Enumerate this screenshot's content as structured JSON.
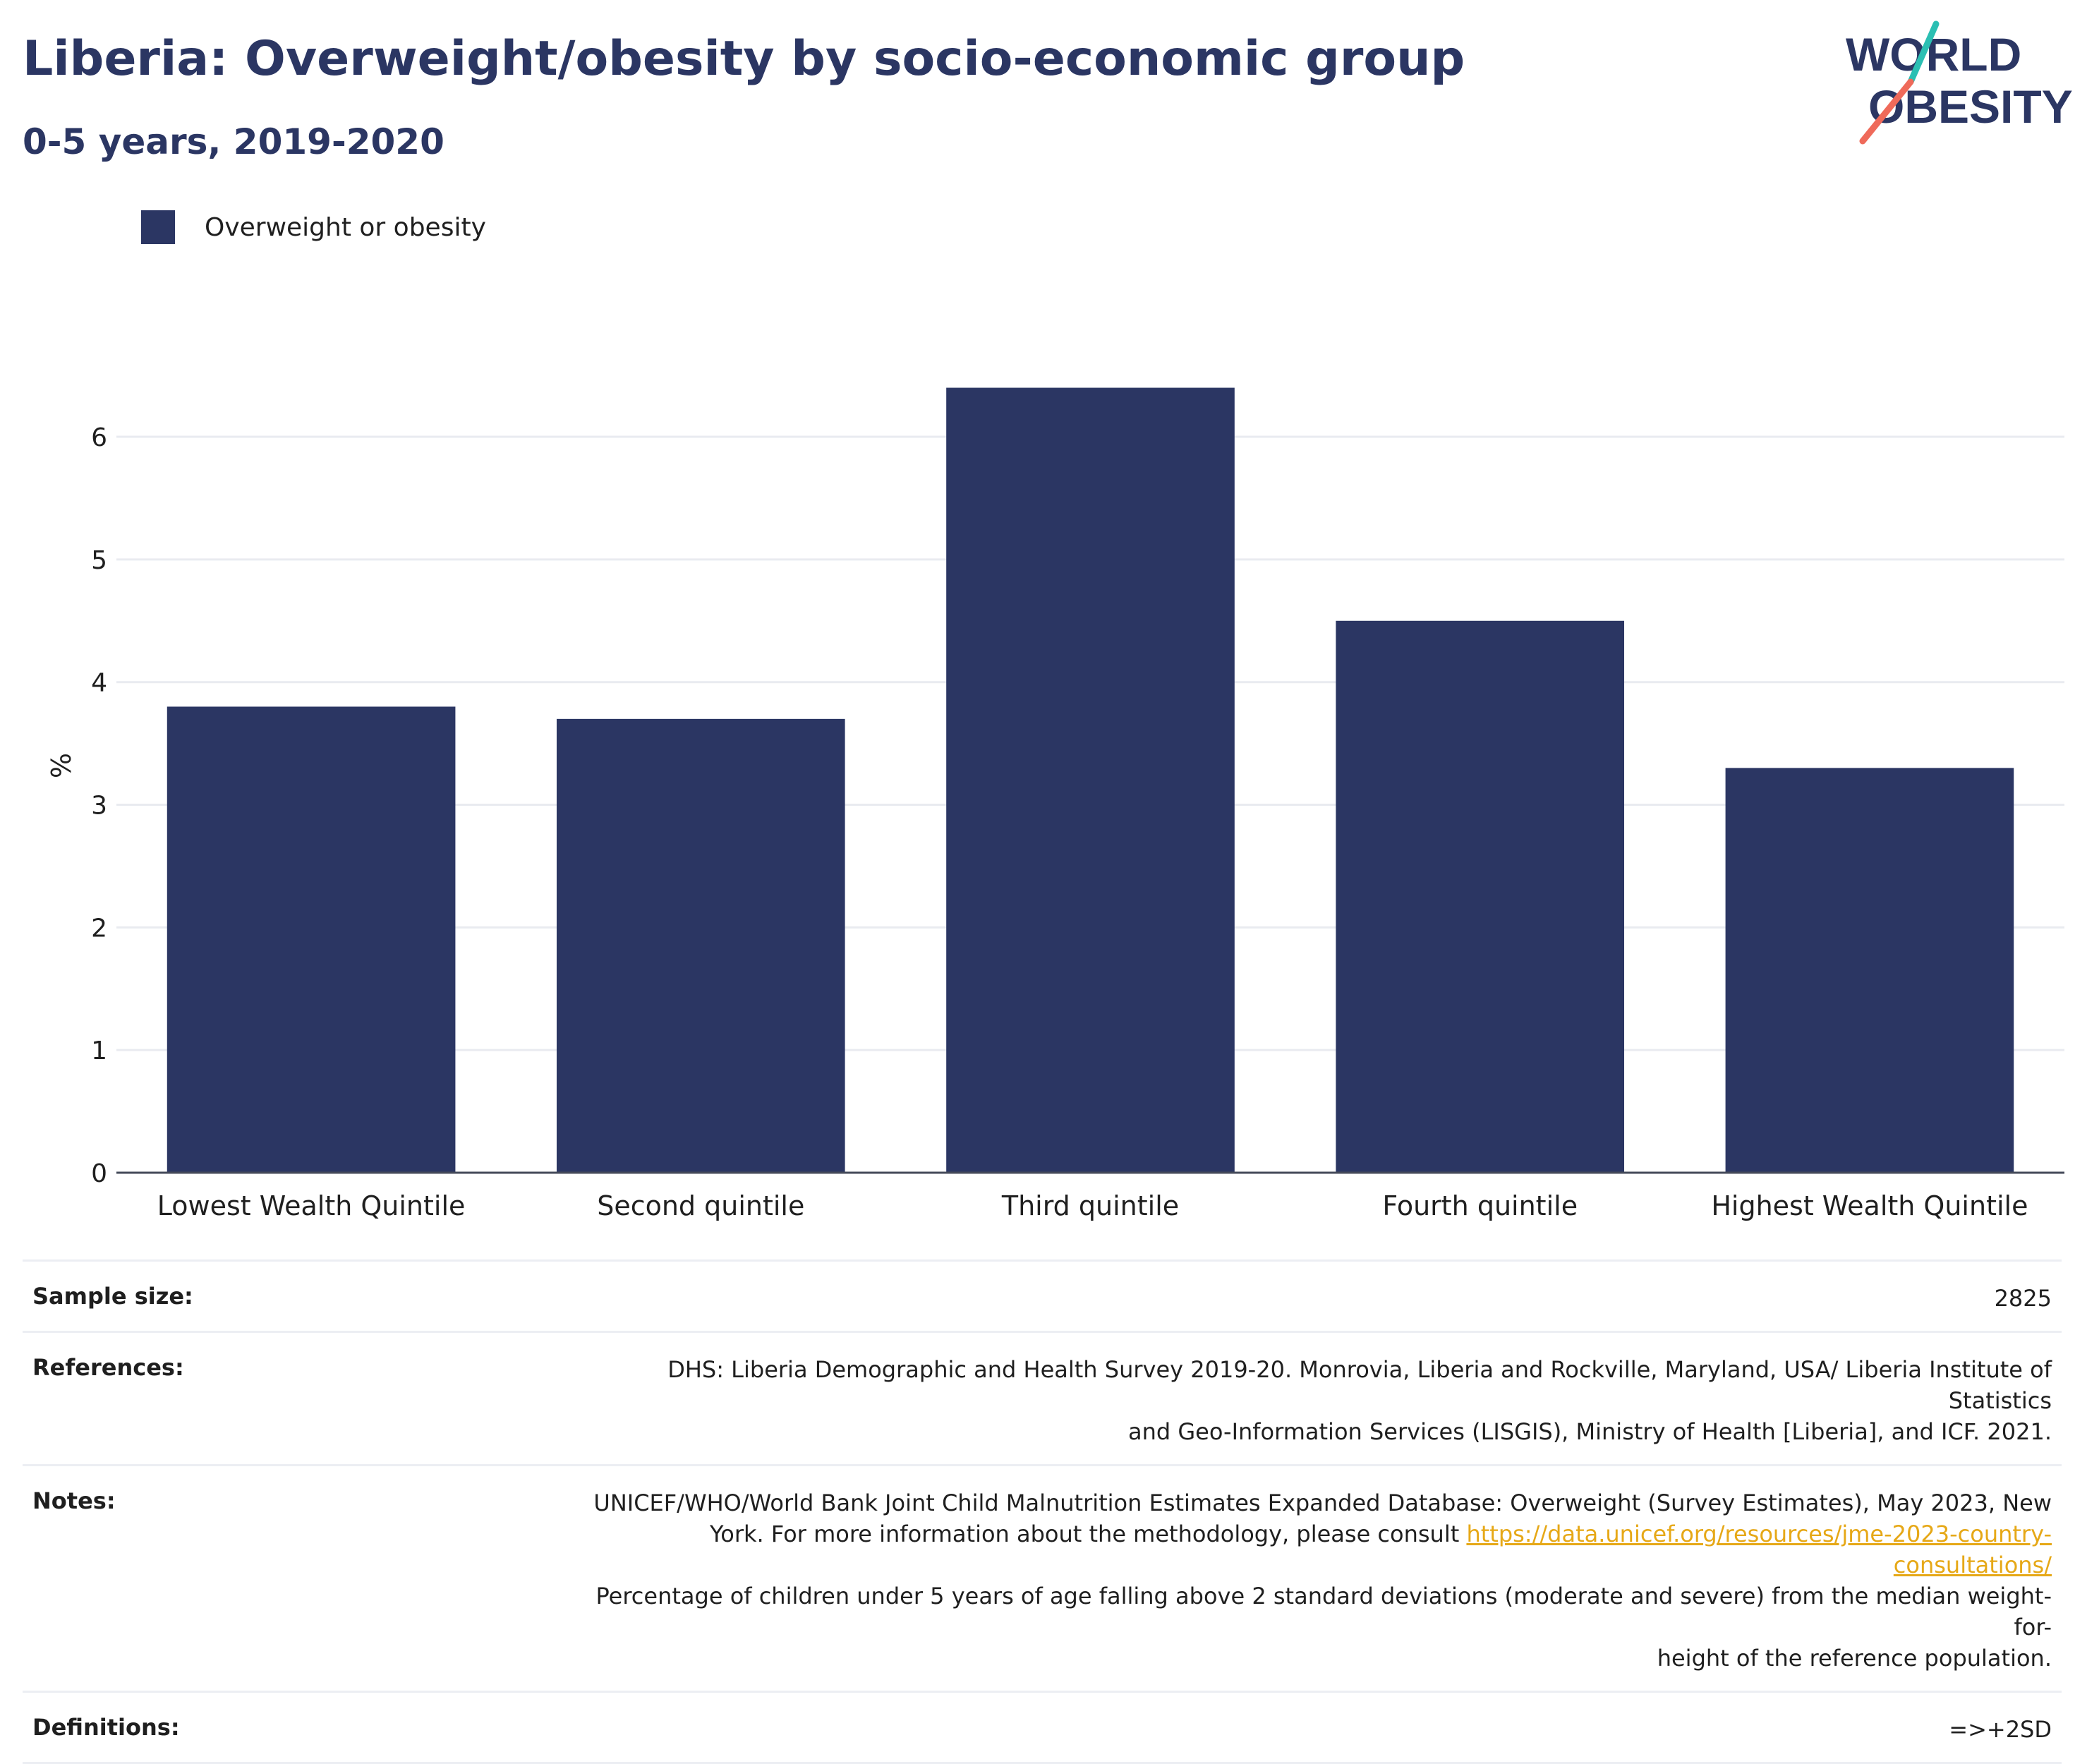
{
  "header": {
    "title": "Liberia: Overweight/obesity by socio-economic group",
    "subtitle": "0-5 years, 2019-2020"
  },
  "logo": {
    "line1": "WORLD",
    "line2": "OBESITY",
    "accent_teal": "#2bbfb3",
    "accent_coral": "#ef6a5a",
    "text_color": "#2b3663"
  },
  "legend": {
    "series_label": "Overweight or obesity"
  },
  "chart_data": {
    "type": "bar",
    "categories": [
      "Lowest Wealth Quintile",
      "Second quintile",
      "Third quintile",
      "Fourth quintile",
      "Highest Wealth Quintile"
    ],
    "series": [
      {
        "name": "Overweight or obesity",
        "values": [
          3.8,
          3.7,
          6.4,
          4.5,
          3.3
        ],
        "color": "#2b3663"
      }
    ],
    "xlabel": "",
    "ylabel": "%",
    "ylim": [
      0,
      6.8
    ],
    "yticks": [
      0,
      1,
      2,
      3,
      4,
      5,
      6
    ],
    "grid": true
  },
  "meta": {
    "sample_size_label": "Sample size:",
    "sample_size_value": "2825",
    "references_label": "References:",
    "references_line1": "DHS: Liberia Demographic and Health Survey 2019-20. Monrovia, Liberia and Rockville, Maryland, USA/ Liberia Institute of Statistics",
    "references_line2": "and Geo-Information Services (LISGIS), Ministry of Health [Liberia], and ICF. 2021.",
    "notes_label": "Notes:",
    "notes_line1": "UNICEF/WHO/World Bank Joint Child Malnutrition Estimates Expanded Database: Overweight (Survey Estimates), May 2023, New",
    "notes_line2_prefix": "York. For more information about the methodology, please consult ",
    "notes_link": "https://data.unicef.org/resources/jme-2023-country-consultations/",
    "notes_line3": "Percentage of children under 5 years of age falling above 2 standard deviations (moderate and severe) from the median weight-for-",
    "notes_line4": "height of the reference population.",
    "definitions_label": "Definitions:",
    "definitions_value": "=>+2SD"
  }
}
